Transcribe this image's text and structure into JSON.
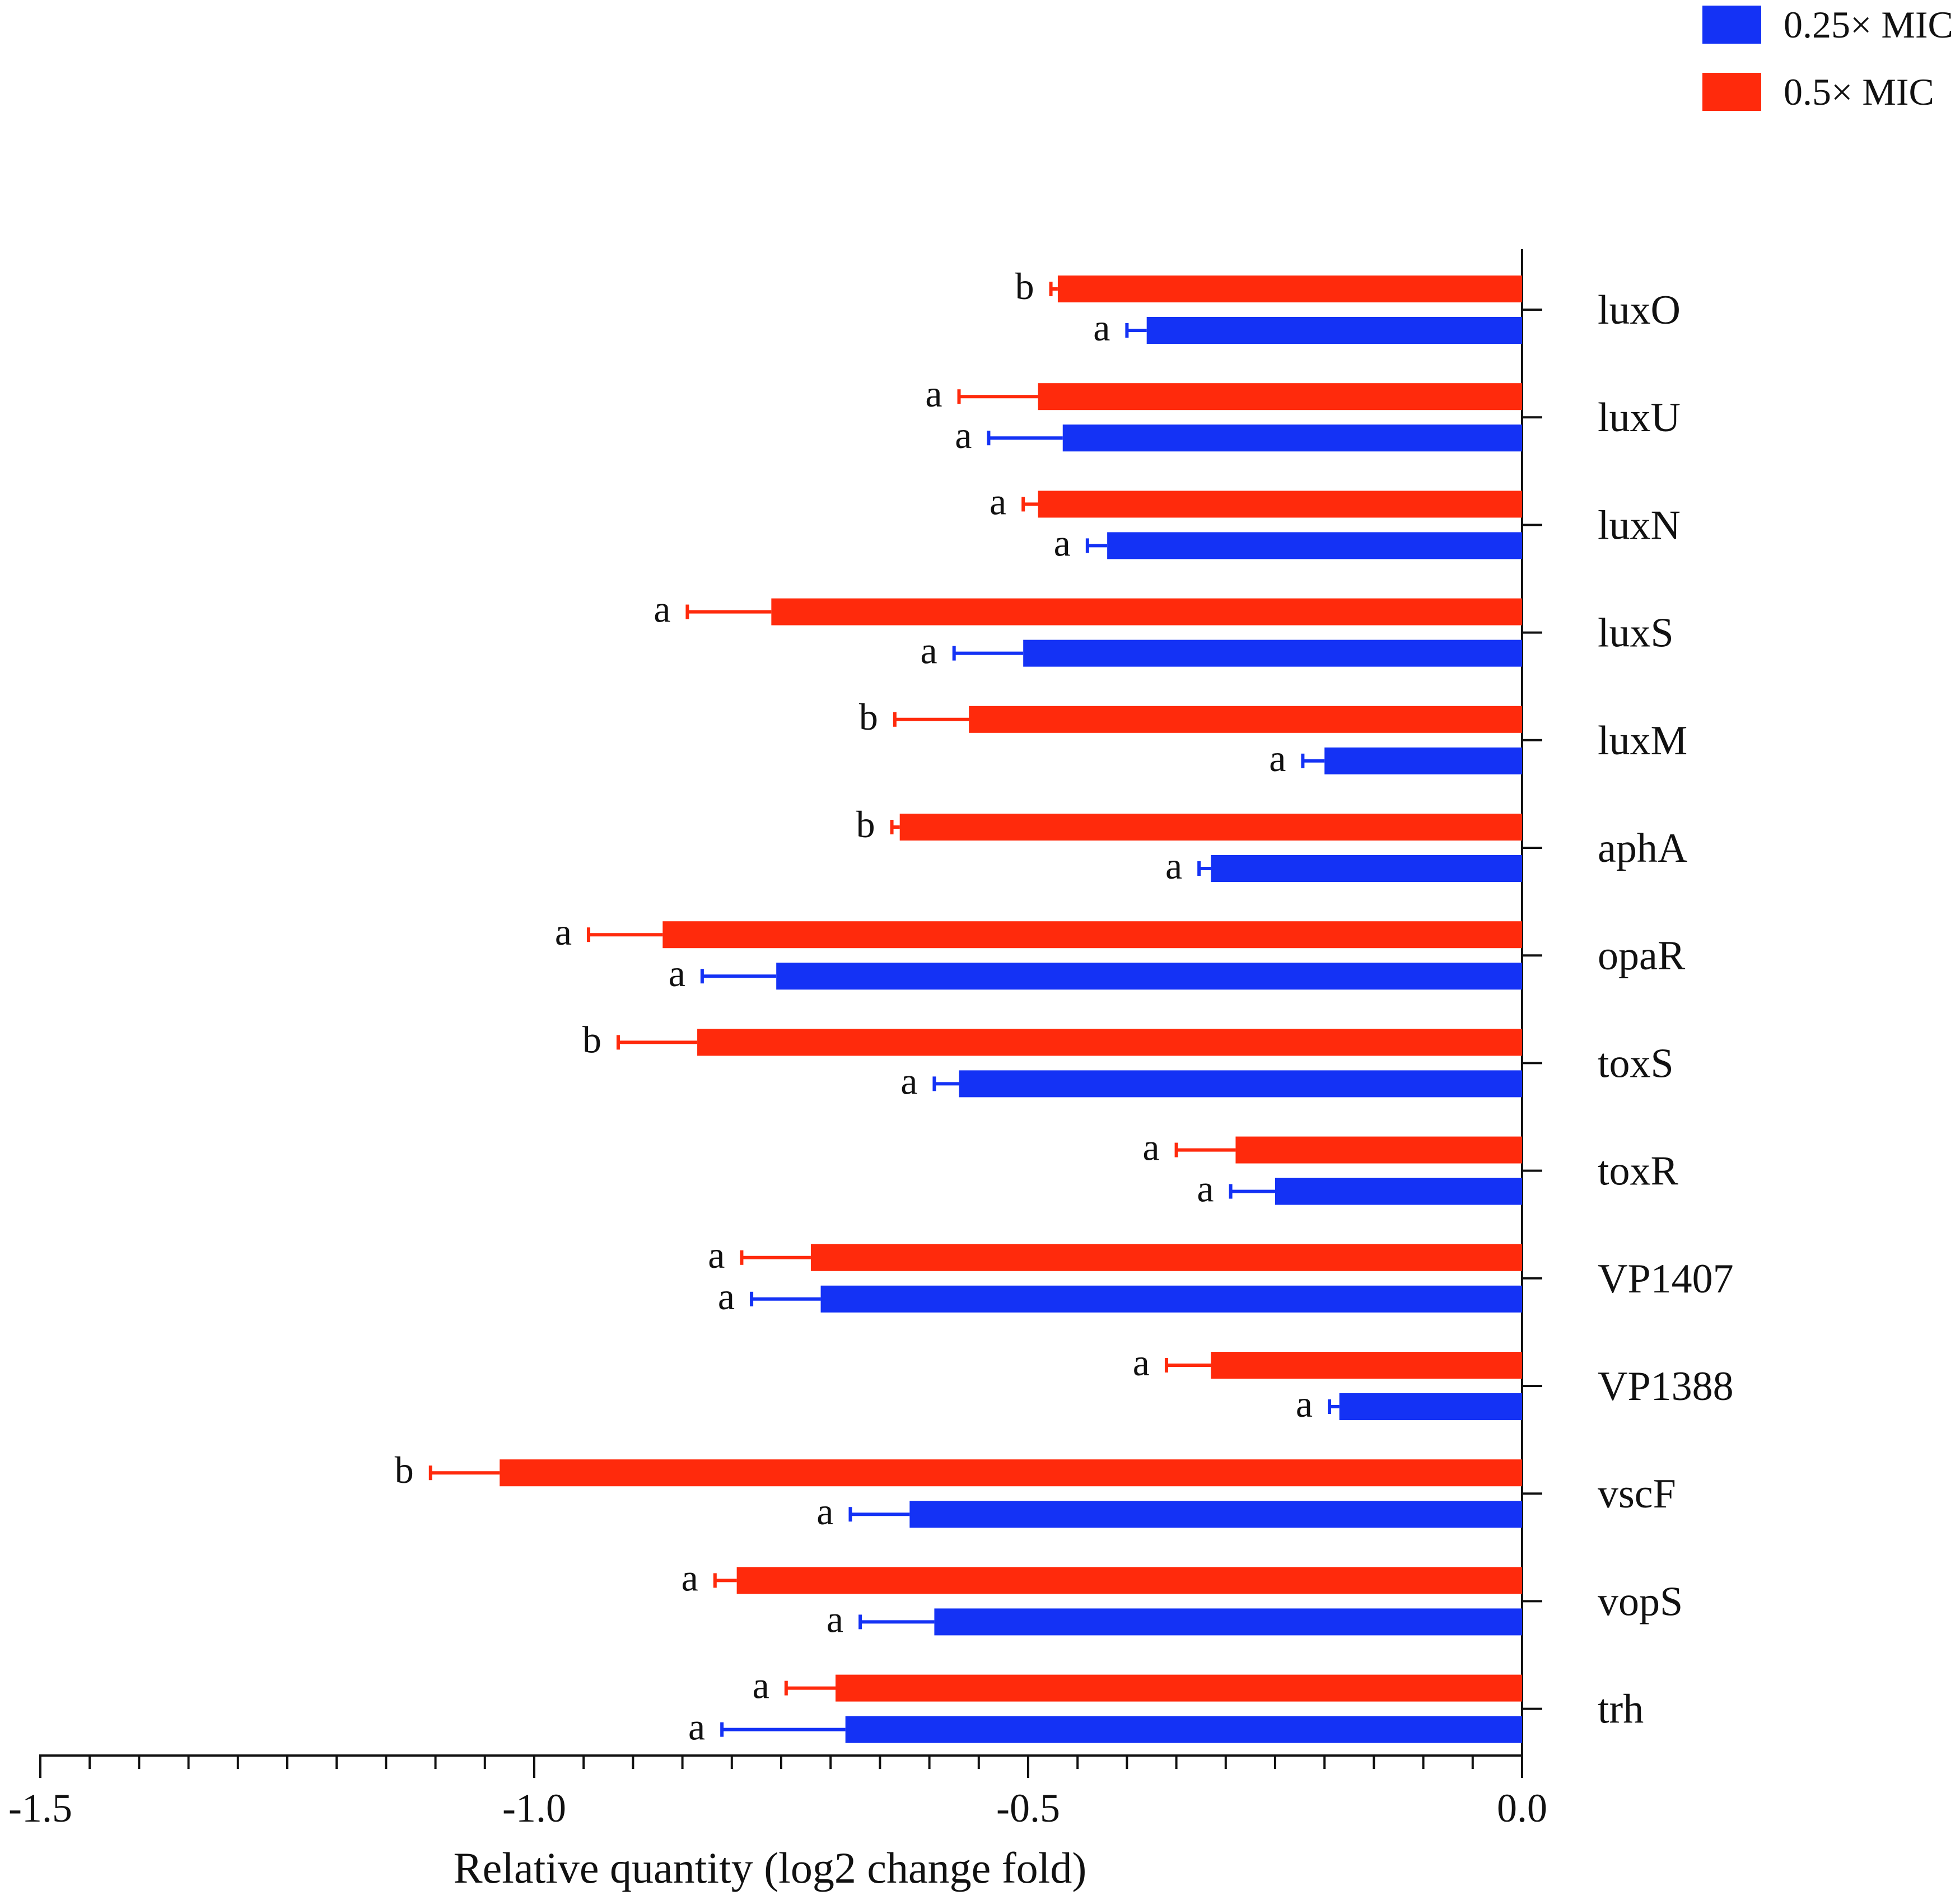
{
  "legend": {
    "series_a_label": "0.25× MIC",
    "series_b_label": "0.5× MIC"
  },
  "colors": {
    "series_a": "#1432f5",
    "series_b": "#ff2a0c",
    "axis": "#111111",
    "text": "#111111"
  },
  "chart_data": {
    "type": "bar",
    "orientation": "horizontal",
    "xlabel": "Relative quantity (log2 change fold)",
    "ylabel": "",
    "xlim": [
      -1.5,
      0.0
    ],
    "xticks": [
      -1.5,
      -1.0,
      -0.5,
      0.0
    ],
    "xtick_labels": [
      "-1.5",
      "-1.0",
      "-0.5",
      "0.0"
    ],
    "minor_tick_step": 0.05,
    "categories": [
      "luxO",
      "luxU",
      "luxN",
      "luxS",
      "luxM",
      "aphA",
      "opaR",
      "toxS",
      "toxR",
      "VP1407",
      "VP1388",
      "vscF",
      "vopS",
      "trh"
    ],
    "series": [
      {
        "name": "0.5× MIC",
        "color_key": "series_b",
        "values": [
          -0.47,
          -0.49,
          -0.49,
          -0.76,
          -0.56,
          -0.63,
          -0.87,
          -0.835,
          -0.29,
          -0.72,
          -0.315,
          -1.035,
          -0.795,
          -0.695
        ],
        "error": [
          0.007,
          0.08,
          0.015,
          0.085,
          0.075,
          0.008,
          0.075,
          0.08,
          0.06,
          0.07,
          0.045,
          0.07,
          0.022,
          0.05
        ],
        "significance": [
          "b",
          "a",
          "a",
          "a",
          "b",
          "b",
          "a",
          "b",
          "a",
          "a",
          "a",
          "b",
          "a",
          "a"
        ]
      },
      {
        "name": "0.25× MIC",
        "color_key": "series_a",
        "values": [
          -0.38,
          -0.465,
          -0.42,
          -0.505,
          -0.2,
          -0.315,
          -0.755,
          -0.57,
          -0.25,
          -0.71,
          -0.185,
          -0.62,
          -0.595,
          -0.685
        ],
        "error": [
          0.02,
          0.075,
          0.02,
          0.07,
          0.022,
          0.012,
          0.075,
          0.025,
          0.045,
          0.07,
          0.01,
          0.06,
          0.075,
          0.125
        ],
        "significance": [
          "a",
          "a",
          "a",
          "a",
          "a",
          "a",
          "a",
          "a",
          "a",
          "a",
          "a",
          "a",
          "a",
          "a"
        ]
      }
    ]
  }
}
